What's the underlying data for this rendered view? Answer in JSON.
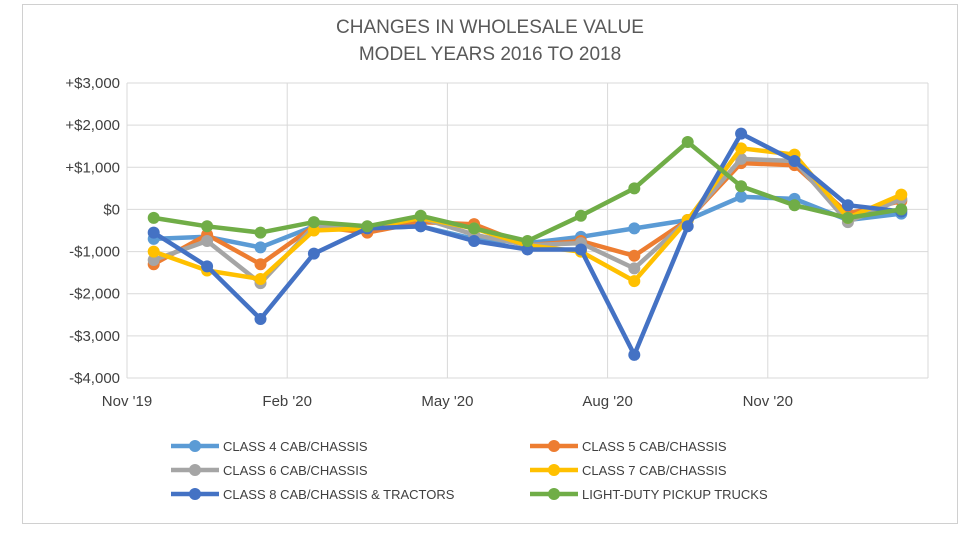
{
  "chart_data": {
    "type": "line",
    "title": [
      "CHANGES IN WHOLESALE VALUE",
      "MODEL YEARS 2016 TO 2018"
    ],
    "xlabel": "",
    "ylabel": "",
    "x_tick_labels": [
      "Nov '19",
      "Feb '20",
      "May '20",
      "Aug '20",
      "Nov '20"
    ],
    "x_tick_index": [
      0,
      3,
      6,
      9,
      12
    ],
    "x_count": 15,
    "y_ticks": [
      3000,
      2000,
      1000,
      0,
      -1000,
      -2000,
      -3000,
      -4000
    ],
    "y_tick_labels": [
      "+$3,000",
      "+$2,000",
      "+$1,000",
      "$0",
      "-$1,000",
      "-$2,000",
      "-$3,000",
      "-$4,000"
    ],
    "ylim": [
      -4000,
      3000
    ],
    "grid": true,
    "legend_position": "bottom",
    "series": [
      {
        "name": "CLASS 4 CAB/CHASSIS",
        "color": "#5b9bd5",
        "values": [
          -700,
          -650,
          -900,
          -400,
          -450,
          -400,
          -700,
          -800,
          -650,
          -450,
          -250,
          300,
          250,
          -250,
          -100
        ]
      },
      {
        "name": "CLASS 5 CAB/CHASSIS",
        "color": "#ed7d31",
        "values": [
          -1300,
          -600,
          -1300,
          -400,
          -550,
          -300,
          -350,
          -850,
          -750,
          -1100,
          -250,
          1100,
          1050,
          -100,
          200
        ]
      },
      {
        "name": "CLASS 6 CAB/CHASSIS",
        "color": "#a5a5a5",
        "values": [
          -1200,
          -750,
          -1750,
          -400,
          -450,
          -200,
          -600,
          -850,
          -800,
          -1400,
          -250,
          1200,
          1150,
          -300,
          250
        ]
      },
      {
        "name": "CLASS 7 CAB/CHASSIS",
        "color": "#ffc000",
        "values": [
          -1000,
          -1450,
          -1650,
          -500,
          -450,
          -200,
          -450,
          -850,
          -1000,
          -1700,
          -250,
          1450,
          1300,
          -200,
          350
        ]
      },
      {
        "name": "CLASS 8 CAB/CHASSIS & TRACTORS",
        "color": "#4472c4",
        "values": [
          -550,
          -1350,
          -2600,
          -1050,
          -450,
          -400,
          -750,
          -950,
          -950,
          -3450,
          -400,
          1800,
          1150,
          100,
          -50
        ]
      },
      {
        "name": "LIGHT-DUTY PICKUP TRUCKS",
        "color": "#70ad47",
        "values": [
          -200,
          -400,
          -550,
          -300,
          -400,
          -150,
          -450,
          -750,
          -150,
          500,
          1600,
          550,
          100,
          -200,
          0
        ]
      }
    ]
  }
}
